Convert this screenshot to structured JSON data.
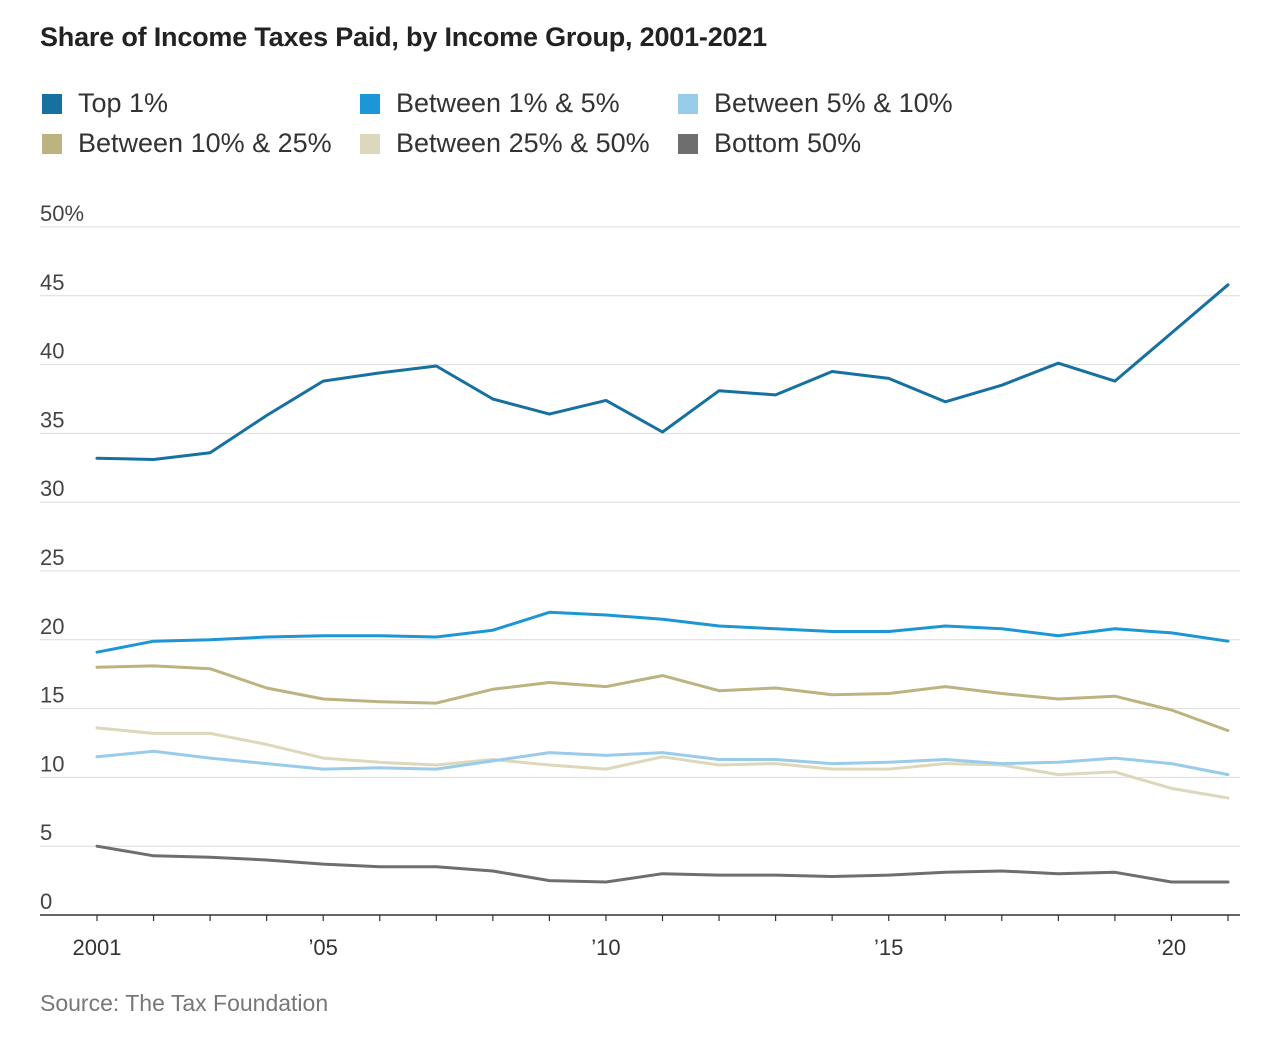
{
  "title": "Share of Income Taxes Paid, by Income Group, 2001-2021",
  "source": "Source: The Tax Foundation",
  "chart_data": {
    "type": "line",
    "title": "Share of Income Taxes Paid, by Income Group, 2001-2021",
    "xlabel": "",
    "ylabel": "",
    "x": [
      2001,
      2002,
      2003,
      2004,
      2005,
      2006,
      2007,
      2008,
      2009,
      2010,
      2011,
      2012,
      2013,
      2014,
      2015,
      2016,
      2017,
      2018,
      2019,
      2020,
      2021
    ],
    "xlim": [
      2001,
      2021
    ],
    "ylim": [
      0,
      50
    ],
    "y_ticks": [
      0,
      5,
      10,
      15,
      20,
      25,
      30,
      35,
      40,
      45,
      50
    ],
    "y_tick_labels": [
      "0",
      "5",
      "10",
      "15",
      "20",
      "25",
      "30",
      "35",
      "40",
      "45",
      "50%"
    ],
    "x_ticks": [
      2001,
      2005,
      2010,
      2015,
      2020
    ],
    "x_tick_labels": [
      "2001",
      "’05",
      "’10",
      "’15",
      "’20"
    ],
    "grid": true,
    "legend_position": "top",
    "series": [
      {
        "name": "Top 1%",
        "color": "#1670a0",
        "values": [
          33.2,
          33.1,
          33.6,
          36.3,
          38.8,
          39.4,
          39.9,
          37.5,
          36.4,
          37.4,
          35.1,
          38.1,
          37.8,
          39.5,
          39.0,
          37.3,
          38.5,
          40.1,
          38.8,
          42.3,
          45.8
        ]
      },
      {
        "name": "Between 1% & 5%",
        "color": "#1c96d4",
        "values": [
          19.1,
          19.9,
          20.0,
          20.2,
          20.3,
          20.3,
          20.2,
          20.7,
          22.0,
          21.8,
          21.5,
          21.0,
          20.8,
          20.6,
          20.6,
          21.0,
          20.8,
          20.3,
          20.8,
          20.5,
          19.9
        ]
      },
      {
        "name": "Between 5% & 10%",
        "color": "#99cbeb",
        "values": [
          11.5,
          11.9,
          11.4,
          11.0,
          10.6,
          10.7,
          10.6,
          11.2,
          11.8,
          11.6,
          11.8,
          11.3,
          11.3,
          11.0,
          11.1,
          11.3,
          11.0,
          11.1,
          11.4,
          11.0,
          10.2
        ]
      },
      {
        "name": "Between 10% & 25%",
        "color": "#bcb380",
        "values": [
          18.0,
          18.1,
          17.9,
          16.5,
          15.7,
          15.5,
          15.4,
          16.4,
          16.9,
          16.6,
          17.4,
          16.3,
          16.5,
          16.0,
          16.1,
          16.6,
          16.1,
          15.7,
          15.9,
          14.9,
          13.4
        ]
      },
      {
        "name": "Between 25% & 50%",
        "color": "#ddd8bb",
        "values": [
          13.6,
          13.2,
          13.2,
          12.4,
          11.4,
          11.1,
          10.9,
          11.3,
          10.9,
          10.6,
          11.5,
          10.9,
          11.0,
          10.6,
          10.6,
          11.0,
          10.9,
          10.2,
          10.4,
          9.2,
          8.5
        ]
      },
      {
        "name": "Bottom 50%",
        "color": "#6e6e6e",
        "values": [
          5.0,
          4.3,
          4.2,
          4.0,
          3.7,
          3.5,
          3.5,
          3.2,
          2.5,
          2.4,
          3.0,
          2.9,
          2.9,
          2.8,
          2.9,
          3.1,
          3.2,
          3.0,
          3.1,
          2.4,
          2.4
        ]
      }
    ]
  }
}
